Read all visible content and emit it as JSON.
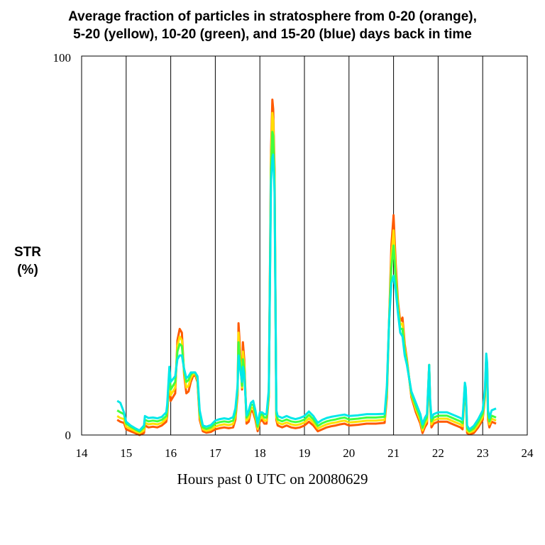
{
  "chart_data": {
    "type": "line",
    "title_line1": "Average fraction of particles in stratosphere from 0-20 (orange),",
    "title_line2": "5-20 (yellow), 10-20 (green), and 15-20 (blue) days back in time",
    "ylabel_line1": "STR",
    "ylabel_line2": "(%)",
    "xlabel": "Hours past 0 UTC on 20080629",
    "xlim": [
      14,
      24
    ],
    "ylim": [
      0,
      100
    ],
    "x_ticks": [
      "14",
      "15",
      "16",
      "17",
      "18",
      "19",
      "20",
      "21",
      "22",
      "23",
      "24"
    ],
    "y_ticks": [
      "0",
      "100"
    ],
    "grid": "vertical lines at each hour",
    "colors": {
      "orange": "#ff5a00",
      "yellow": "#ffe000",
      "green": "#40ff40",
      "blue": "#00e8e8"
    },
    "series": [
      {
        "x": [
          14.8,
          14.87,
          14.95,
          15.0,
          15.1,
          15.2,
          15.3,
          15.4,
          15.42,
          15.5,
          15.6,
          15.7,
          15.8,
          15.9,
          15.92,
          15.97,
          16.0,
          16.1,
          16.15,
          16.2,
          16.25,
          16.3,
          16.35,
          16.4,
          16.45,
          16.5,
          16.55,
          16.6,
          16.65,
          16.72,
          16.8,
          16.9,
          17.0,
          17.1,
          17.2,
          17.3,
          17.4,
          17.45,
          17.5,
          17.52,
          17.55,
          17.6,
          17.62,
          17.65,
          17.7,
          17.75,
          17.8,
          17.85,
          17.9,
          17.95,
          18.0,
          18.05,
          18.1,
          18.15,
          18.2,
          18.25,
          18.28,
          18.3,
          18.33,
          18.37,
          18.4,
          18.5,
          18.6,
          18.7,
          18.8,
          18.9,
          19.0,
          19.1,
          19.2,
          19.3,
          19.4,
          19.5,
          19.6,
          19.7,
          19.8,
          19.9,
          20.0,
          20.2,
          20.4,
          20.6,
          20.8,
          20.85,
          20.9,
          20.95,
          21.0,
          21.05,
          21.1,
          21.15,
          21.2,
          21.25,
          21.3,
          21.4,
          21.5,
          21.6,
          21.65,
          21.7,
          21.75,
          21.8,
          21.82,
          21.85,
          21.9,
          22.0,
          22.1,
          22.2,
          22.3,
          22.4,
          22.5,
          22.55,
          22.6,
          22.62,
          22.65,
          22.7,
          22.8,
          22.9,
          23.0,
          23.05,
          23.08,
          23.1,
          23.12,
          23.15,
          23.2,
          23.3
        ],
        "values": [
          4,
          3.5,
          3.2,
          1.5,
          1.0,
          0.5,
          0.0,
          0.5,
          2.5,
          2.0,
          2.2,
          2.0,
          2.5,
          3.5,
          5.0,
          14.5,
          9.0,
          11.0,
          25.0,
          28.0,
          27.0,
          16.0,
          11.0,
          11.5,
          14.0,
          15.5,
          15.8,
          14.0,
          4.0,
          1.0,
          0.6,
          0.8,
          1.5,
          1.8,
          2.0,
          1.8,
          2.0,
          4.0,
          10.5,
          29.5,
          24.0,
          12.0,
          24.5,
          20.0,
          3.0,
          3.5,
          6.5,
          6.0,
          4.0,
          1.0,
          3.5,
          4.0,
          3.0,
          3.0,
          10.0,
          75.0,
          88.5,
          86.0,
          70.0,
          4.0,
          2.5,
          2.0,
          2.5,
          2.0,
          1.8,
          2.0,
          2.5,
          3.5,
          2.5,
          1.0,
          1.5,
          2.0,
          2.3,
          2.5,
          2.8,
          3.0,
          2.5,
          2.7,
          3.0,
          3.0,
          3.2,
          10.0,
          30.0,
          50.0,
          58.0,
          45.0,
          35.0,
          30.0,
          31.0,
          24.0,
          20.0,
          10.0,
          6.0,
          3.0,
          0.5,
          2.0,
          3.0,
          18.5,
          8.0,
          2.0,
          3.0,
          3.5,
          3.5,
          3.5,
          3.0,
          2.5,
          2.0,
          1.5,
          13.0,
          11.0,
          0.5,
          0.2,
          0.5,
          2.0,
          4.0,
          10.0,
          20.5,
          18.0,
          4.0,
          2.0,
          3.5,
          3.0
        ]
      },
      {
        "x": [
          14.8,
          14.87,
          14.95,
          15.0,
          15.1,
          15.2,
          15.3,
          15.4,
          15.42,
          15.5,
          15.6,
          15.7,
          15.8,
          15.9,
          15.92,
          15.97,
          16.0,
          16.1,
          16.15,
          16.2,
          16.25,
          16.3,
          16.35,
          16.4,
          16.45,
          16.5,
          16.55,
          16.6,
          16.65,
          16.72,
          16.8,
          16.9,
          17.0,
          17.1,
          17.2,
          17.3,
          17.4,
          17.45,
          17.5,
          17.52,
          17.55,
          17.6,
          17.62,
          17.65,
          17.7,
          17.75,
          17.8,
          17.85,
          17.9,
          17.95,
          18.0,
          18.05,
          18.1,
          18.15,
          18.2,
          18.25,
          18.28,
          18.3,
          18.33,
          18.37,
          18.4,
          18.5,
          18.6,
          18.7,
          18.8,
          18.9,
          19.0,
          19.1,
          19.2,
          19.3,
          19.4,
          19.5,
          19.6,
          19.7,
          19.8,
          19.9,
          20.0,
          20.2,
          20.4,
          20.6,
          20.8,
          20.85,
          20.9,
          20.95,
          21.0,
          21.05,
          21.1,
          21.15,
          21.2,
          21.25,
          21.3,
          21.4,
          21.5,
          21.6,
          21.65,
          21.7,
          21.75,
          21.8,
          21.82,
          21.85,
          21.9,
          22.0,
          22.1,
          22.2,
          22.3,
          22.4,
          22.5,
          22.55,
          22.6,
          22.62,
          22.65,
          22.7,
          22.8,
          22.9,
          23.0,
          23.05,
          23.08,
          23.1,
          23.12,
          23.15,
          23.2,
          23.3
        ],
        "values": [
          5,
          4.5,
          4.2,
          2.2,
          1.6,
          1.0,
          0.5,
          1.2,
          3.2,
          2.8,
          3.0,
          2.8,
          3.2,
          4.3,
          6.0,
          16.0,
          10.5,
          12.5,
          23.5,
          26.0,
          25.0,
          16.5,
          12.5,
          13.0,
          15.0,
          16.0,
          16.2,
          14.5,
          4.8,
          1.5,
          1.1,
          1.4,
          2.2,
          2.6,
          2.8,
          2.6,
          2.9,
          5.0,
          11.5,
          27.0,
          22.0,
          12.5,
          22.0,
          18.5,
          3.8,
          4.5,
          7.3,
          7.0,
          4.8,
          1.6,
          4.3,
          4.8,
          3.8,
          3.8,
          10.5,
          73.0,
          85.0,
          83.0,
          68.0,
          4.8,
          3.3,
          2.8,
          3.3,
          2.8,
          2.6,
          2.8,
          3.3,
          4.4,
          3.3,
          1.7,
          2.3,
          2.8,
          3.1,
          3.3,
          3.6,
          3.8,
          3.3,
          3.5,
          3.8,
          3.8,
          4.0,
          11.0,
          30.0,
          47.0,
          54.0,
          43.0,
          34.0,
          29.0,
          29.5,
          23.0,
          19.5,
          10.5,
          6.8,
          3.8,
          1.2,
          2.8,
          3.8,
          18.5,
          8.5,
          2.8,
          3.8,
          4.3,
          4.3,
          4.3,
          3.8,
          3.3,
          2.8,
          2.3,
          13.3,
          11.5,
          1.1,
          0.6,
          1.1,
          2.7,
          4.8,
          10.5,
          20.5,
          18.0,
          4.8,
          2.8,
          4.3,
          3.8
        ]
      },
      {
        "x": [
          14.8,
          14.87,
          14.95,
          15.0,
          15.1,
          15.2,
          15.3,
          15.4,
          15.42,
          15.5,
          15.6,
          15.7,
          15.8,
          15.9,
          15.92,
          15.97,
          16.0,
          16.1,
          16.15,
          16.2,
          16.25,
          16.3,
          16.35,
          16.4,
          16.45,
          16.5,
          16.55,
          16.6,
          16.65,
          16.72,
          16.8,
          16.9,
          17.0,
          17.1,
          17.2,
          17.3,
          17.4,
          17.45,
          17.5,
          17.52,
          17.55,
          17.6,
          17.62,
          17.65,
          17.7,
          17.75,
          17.8,
          17.85,
          17.9,
          17.95,
          18.0,
          18.05,
          18.1,
          18.15,
          18.2,
          18.25,
          18.28,
          18.3,
          18.33,
          18.37,
          18.4,
          18.5,
          18.6,
          18.7,
          18.8,
          18.9,
          19.0,
          19.1,
          19.2,
          19.3,
          19.4,
          19.5,
          19.6,
          19.7,
          19.8,
          19.9,
          20.0,
          20.2,
          20.4,
          20.6,
          20.8,
          20.85,
          20.9,
          20.95,
          21.0,
          21.05,
          21.1,
          21.15,
          21.2,
          21.25,
          21.3,
          21.4,
          21.5,
          21.6,
          21.65,
          21.7,
          21.75,
          21.8,
          21.82,
          21.85,
          21.9,
          22.0,
          22.1,
          22.2,
          22.3,
          22.4,
          22.5,
          22.55,
          22.6,
          22.62,
          22.65,
          22.7,
          22.8,
          22.9,
          23.0,
          23.05,
          23.08,
          23.1,
          23.12,
          23.15,
          23.2,
          23.3
        ],
        "values": [
          6.5,
          6.0,
          5.5,
          3.0,
          2.2,
          1.5,
          0.9,
          2.0,
          4.0,
          3.6,
          3.8,
          3.6,
          4.0,
          5.0,
          7.0,
          17.0,
          12.0,
          14.0,
          22.0,
          24.0,
          23.5,
          17.0,
          14.0,
          14.5,
          16.0,
          16.5,
          16.5,
          15.0,
          5.6,
          2.0,
          1.6,
          2.0,
          3.0,
          3.4,
          3.6,
          3.4,
          3.8,
          6.0,
          12.5,
          24.5,
          20.0,
          13.0,
          20.0,
          17.0,
          4.6,
          5.5,
          8.0,
          8.0,
          5.6,
          2.2,
          5.0,
          5.6,
          4.6,
          4.6,
          11.0,
          70.0,
          80.0,
          79.0,
          66.0,
          5.6,
          4.1,
          3.6,
          4.1,
          3.6,
          3.4,
          3.6,
          4.1,
          5.3,
          4.1,
          2.4,
          3.1,
          3.6,
          3.9,
          4.1,
          4.4,
          4.6,
          4.1,
          4.3,
          4.6,
          4.6,
          4.8,
          12.0,
          30.0,
          44.0,
          50.0,
          41.0,
          33.0,
          28.0,
          28.0,
          22.0,
          19.0,
          11.0,
          7.6,
          4.6,
          1.9,
          3.6,
          4.6,
          18.5,
          9.0,
          3.6,
          4.6,
          5.1,
          5.1,
          5.1,
          4.6,
          4.1,
          3.6,
          3.1,
          13.6,
          12.0,
          1.7,
          1.0,
          1.7,
          3.4,
          5.6,
          11.0,
          20.5,
          18.0,
          5.6,
          3.6,
          5.1,
          4.6
        ]
      },
      {
        "x": [
          14.8,
          14.87,
          14.95,
          15.0,
          15.1,
          15.2,
          15.3,
          15.4,
          15.42,
          15.5,
          15.6,
          15.7,
          15.8,
          15.9,
          15.92,
          15.97,
          16.0,
          16.1,
          16.15,
          16.2,
          16.25,
          16.3,
          16.35,
          16.4,
          16.45,
          16.5,
          16.55,
          16.6,
          16.65,
          16.72,
          16.8,
          16.9,
          17.0,
          17.1,
          17.2,
          17.3,
          17.4,
          17.45,
          17.5,
          17.52,
          17.55,
          17.6,
          17.62,
          17.65,
          17.7,
          17.75,
          17.8,
          17.85,
          17.9,
          17.95,
          18.0,
          18.05,
          18.1,
          18.15,
          18.2,
          18.25,
          18.28,
          18.3,
          18.33,
          18.37,
          18.4,
          18.5,
          18.6,
          18.7,
          18.8,
          18.9,
          19.0,
          19.1,
          19.2,
          19.3,
          19.4,
          19.5,
          19.6,
          19.7,
          19.8,
          19.9,
          20.0,
          20.2,
          20.4,
          20.6,
          20.8,
          20.85,
          20.9,
          20.95,
          21.0,
          21.05,
          21.1,
          21.15,
          21.2,
          21.25,
          21.3,
          21.4,
          21.5,
          21.6,
          21.65,
          21.7,
          21.75,
          21.8,
          21.82,
          21.85,
          21.9,
          22.0,
          22.1,
          22.2,
          22.3,
          22.4,
          22.5,
          22.55,
          22.6,
          22.62,
          22.65,
          22.7,
          22.8,
          22.9,
          23.0,
          23.05,
          23.08,
          23.1,
          23.12,
          23.15,
          23.2,
          23.3
        ],
        "values": [
          9.0,
          8.5,
          6.0,
          3.5,
          2.5,
          1.8,
          1.2,
          2.5,
          5.0,
          4.5,
          4.6,
          4.4,
          4.8,
          6.0,
          8.0,
          18.0,
          14.0,
          15.5,
          20.0,
          21.0,
          21.0,
          17.5,
          15.0,
          15.5,
          16.5,
          16.5,
          16.5,
          15.5,
          6.5,
          2.5,
          2.2,
          2.6,
          3.8,
          4.2,
          4.4,
          4.2,
          4.7,
          7.0,
          13.0,
          21.0,
          18.0,
          14.0,
          18.0,
          16.0,
          5.2,
          6.5,
          8.5,
          9.0,
          6.5,
          3.0,
          6.0,
          6.0,
          5.5,
          5.5,
          12.0,
          67.0,
          73.0,
          74.0,
          64.0,
          6.5,
          5.0,
          4.5,
          5.0,
          4.5,
          4.2,
          4.5,
          5.0,
          6.2,
          5.0,
          3.2,
          4.0,
          4.5,
          4.8,
          5.0,
          5.2,
          5.4,
          5.0,
          5.2,
          5.5,
          5.5,
          5.6,
          13.0,
          30.0,
          40.0,
          42.0,
          38.0,
          32.0,
          27.0,
          26.0,
          21.0,
          18.5,
          11.5,
          8.5,
          5.5,
          2.8,
          4.5,
          5.5,
          18.5,
          9.5,
          4.5,
          5.5,
          6.0,
          6.0,
          6.0,
          5.5,
          5.0,
          4.5,
          4.0,
          13.8,
          12.5,
          2.5,
          1.5,
          2.4,
          4.2,
          6.5,
          12.0,
          21.5,
          19.0,
          6.5,
          4.5,
          6.5,
          7.0
        ]
      }
    ]
  }
}
